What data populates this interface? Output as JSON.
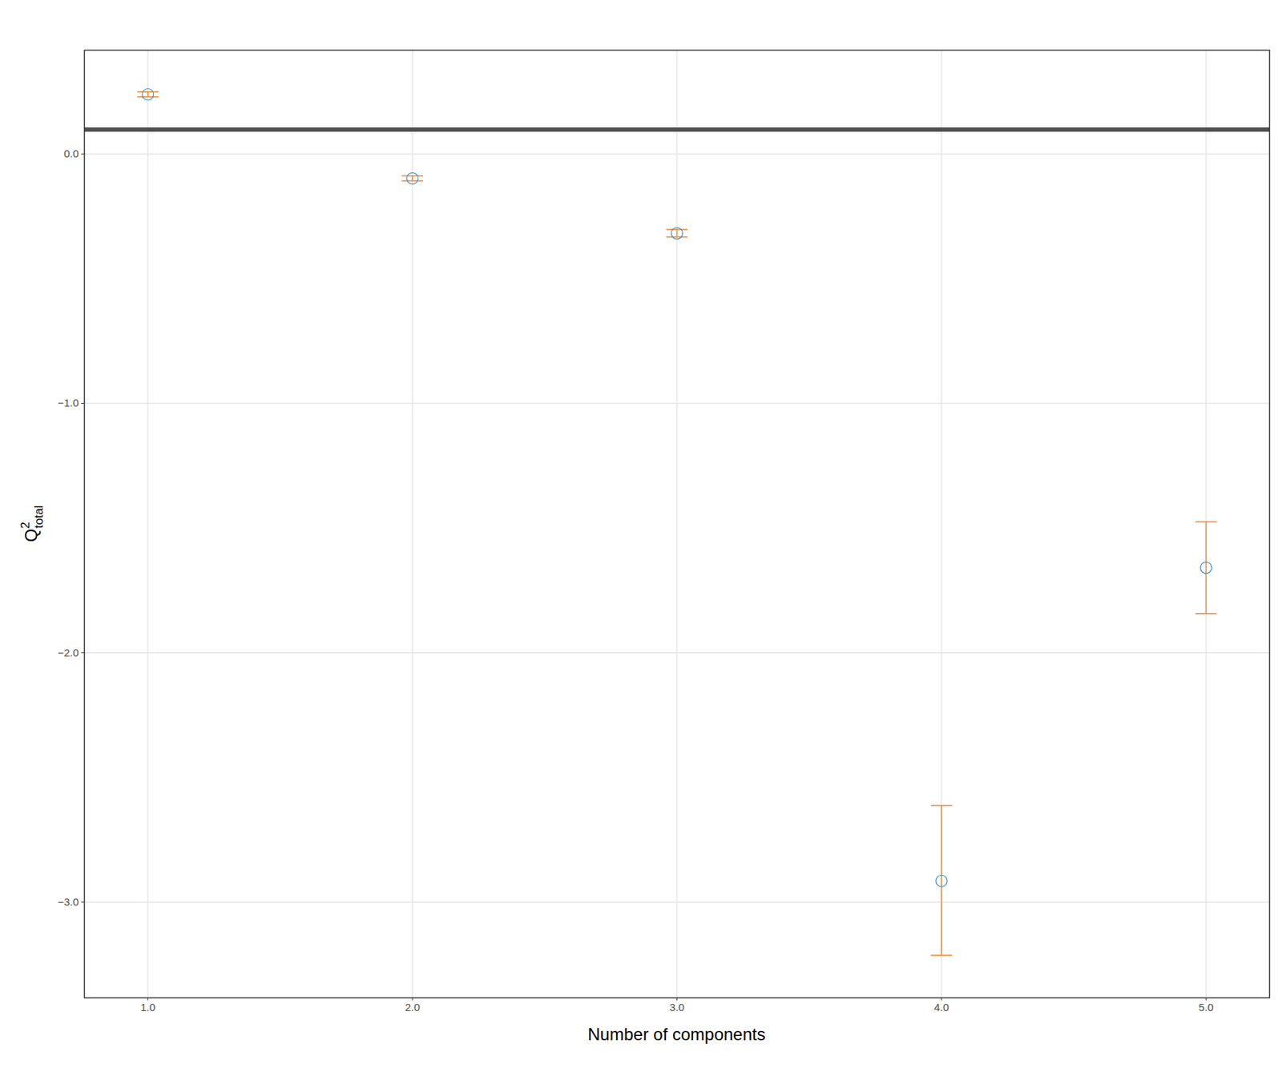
{
  "chart_data": {
    "type": "scatter",
    "xlabel": "Number of components",
    "ylabel": {
      "base": "Q",
      "sup": "2",
      "sub": "total"
    },
    "x": [
      1,
      2,
      3,
      4,
      5
    ],
    "values": [
      0.239,
      -0.098,
      -0.318,
      -2.915,
      -1.659
    ],
    "error_bars": {
      "lower": [
        0.229,
        -0.108,
        -0.333,
        -3.213,
        -1.843
      ],
      "upper": [
        0.249,
        -0.088,
        -0.303,
        -2.613,
        -1.475
      ],
      "color": "#F68B33"
    },
    "color": "#388ECC",
    "marker": "circle",
    "threshold": {
      "value": 0.0975,
      "color": "#505050"
    },
    "xlim": [
      0.76,
      5.24
    ],
    "ylim": [
      -3.384,
      0.416
    ],
    "xticks": [
      1,
      2,
      3,
      4,
      5
    ],
    "yticks": [
      -3,
      -2,
      -1,
      0
    ],
    "grid": true
  }
}
